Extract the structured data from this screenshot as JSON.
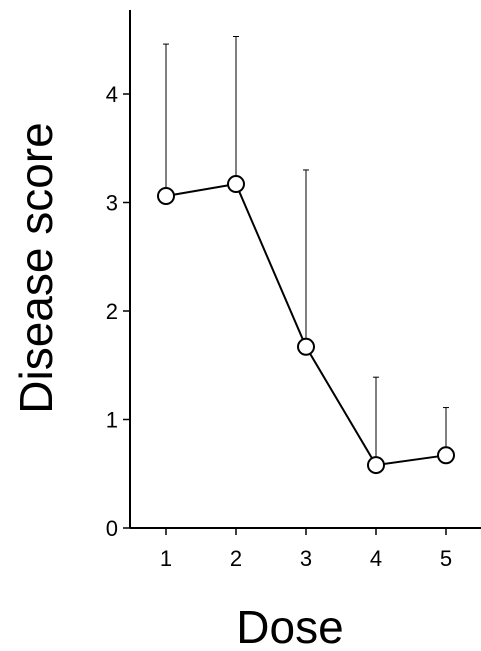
{
  "chart_data": {
    "type": "line",
    "title": "",
    "xlabel": "Dose",
    "ylabel": "Disease score",
    "x": [
      1,
      2,
      3,
      4,
      5
    ],
    "series": [
      {
        "values": [
          3.06,
          3.17,
          1.67,
          0.58,
          0.67
        ],
        "error_upper": [
          4.46,
          4.53,
          3.3,
          1.39,
          1.11
        ]
      }
    ],
    "xticks": [
      "1",
      "2",
      "3",
      "4",
      "5"
    ],
    "yticks": [
      "0",
      "1",
      "2",
      "3",
      "4"
    ],
    "ylim": [
      0,
      4.8
    ],
    "xlim": [
      0.5,
      5.5
    ],
    "marker": "open-circle",
    "grid": false,
    "colors": {
      "line": "#000000",
      "marker_fill": "#ffffff"
    }
  }
}
